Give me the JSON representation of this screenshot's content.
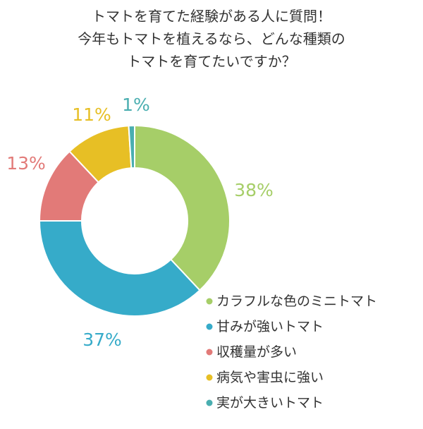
{
  "chart_data": {
    "type": "donut",
    "title": [
      "トマトを育てた経験がある人に質問！",
      "今年もトマトを植えるなら、どんな種類の",
      "トマトを育てたいですか？"
    ],
    "categories": [
      "カラフルな色のミニトマト",
      "甘みが強いトマト",
      "収穫量が多い",
      "病気や害虫に強い",
      "実が大きいトマト"
    ],
    "values": [
      38,
      37,
      13,
      11,
      1
    ],
    "labels": [
      "38%",
      "37%",
      "13%",
      "11%",
      "1%"
    ],
    "colors": [
      "#a6ce68",
      "#36abc9",
      "#e27a78",
      "#e7bf25",
      "#4aaeb0"
    ],
    "legend_position": "bottom-right"
  }
}
